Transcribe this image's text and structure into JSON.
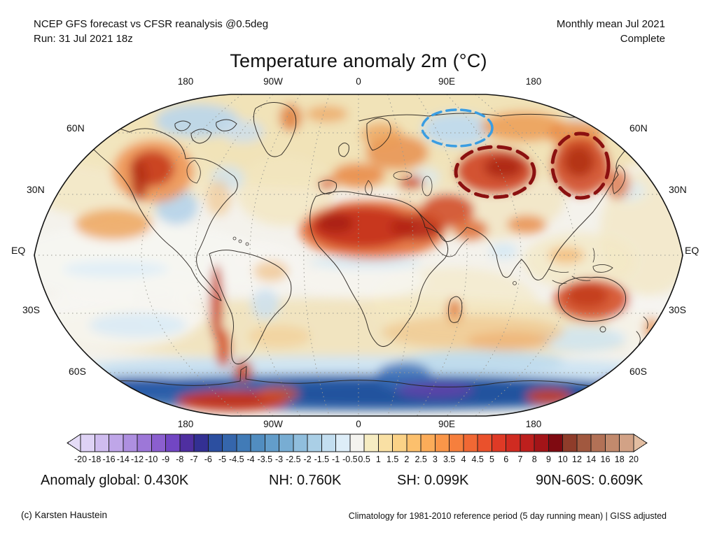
{
  "header": {
    "left_line1": "NCEP GFS forecast vs CFSR reanalysis @0.5deg",
    "left_line2": "Run: 31 Jul 2021 18z",
    "right_line1": "Monthly mean Jul 2021",
    "right_line2": "Complete"
  },
  "title": "Temperature anomaly 2m (°C)",
  "map": {
    "lon_labels": [
      "180",
      "90W",
      "0",
      "90E",
      "180"
    ],
    "lat_labels_left": [
      "60N",
      "30N",
      "EQ",
      "30S",
      "60S"
    ],
    "lat_labels_right": [
      "60N",
      "30N",
      "EQ",
      "30S",
      "60S"
    ],
    "annotations": [
      {
        "name": "cold-anomaly-ellipse",
        "region": "Northwest Siberia",
        "anomaly": "cold",
        "color": "#3a9de2"
      },
      {
        "name": "warm-anomaly-ellipse-central-asia",
        "region": "Central Asia / Mongolia",
        "anomaly": "warm",
        "color": "#8b1010"
      },
      {
        "name": "warm-anomaly-ellipse-northeast-asia",
        "region": "Northeast China / Russian Far East",
        "anomaly": "warm",
        "color": "#8b1010"
      }
    ]
  },
  "chart_data": {
    "type": "heatmap",
    "title": "Temperature anomaly 2m (°C)",
    "projection": "Robinson world map",
    "units": "°C",
    "colorbar": {
      "tick_labels": [
        "-20",
        "-18",
        "-16",
        "-14",
        "-12",
        "-10",
        "-9",
        "-8",
        "-7",
        "-6",
        "-5",
        "-4.5",
        "-4",
        "-3.5",
        "-3",
        "-2.5",
        "-2",
        "-1.5",
        "-1",
        "-0.5",
        "0.5",
        "1",
        "1.5",
        "2",
        "2.5",
        "3",
        "3.5",
        "4",
        "4.5",
        "5",
        "6",
        "7",
        "8",
        "9",
        "10",
        "12",
        "14",
        "16",
        "18",
        "20"
      ],
      "cell_colors": [
        "#ded2f5",
        "#cfbcef",
        "#bfa6e8",
        "#ae8fe0",
        "#9d77d8",
        "#8b5fcf",
        "#7246c3",
        "#4f2fa0",
        "#333093",
        "#2c4fa0",
        "#3566ac",
        "#417bb7",
        "#518dc0",
        "#639dca",
        "#78add3",
        "#90bedd",
        "#aacfe6",
        "#c3def0",
        "#ddedf8",
        "#f4f3ef",
        "#f6ecc2",
        "#f9e0a4",
        "#fbd287",
        "#fcc06d",
        "#fcac59",
        "#fa9649",
        "#f67f3d",
        "#f16834",
        "#ea512c",
        "#df3a26",
        "#d02b21",
        "#bd1f1d",
        "#a31418",
        "#7f0a11",
        "#8f3c2a",
        "#a1583f",
        "#b27156",
        "#c28a6d",
        "#d2a286"
      ],
      "left_arrow_color": "#e5dcf7",
      "right_arrow_color": "#e2bda1"
    },
    "stats": {
      "anomaly_global_K": 0.43,
      "NH_K": 0.76,
      "SH_K": 0.099,
      "band_90N_60S_K": 0.609
    }
  },
  "stats": [
    {
      "text": "Anomaly global: 0.430K"
    },
    {
      "text": "NH: 0.760K"
    },
    {
      "text": "SH: 0.099K"
    },
    {
      "text": "90N-60S: 0.609K"
    }
  ],
  "footer": {
    "left": "(c) Karsten Haustein",
    "right": "Climatology for 1981-2010 reference period (5 day running mean) | GISS adjusted"
  }
}
